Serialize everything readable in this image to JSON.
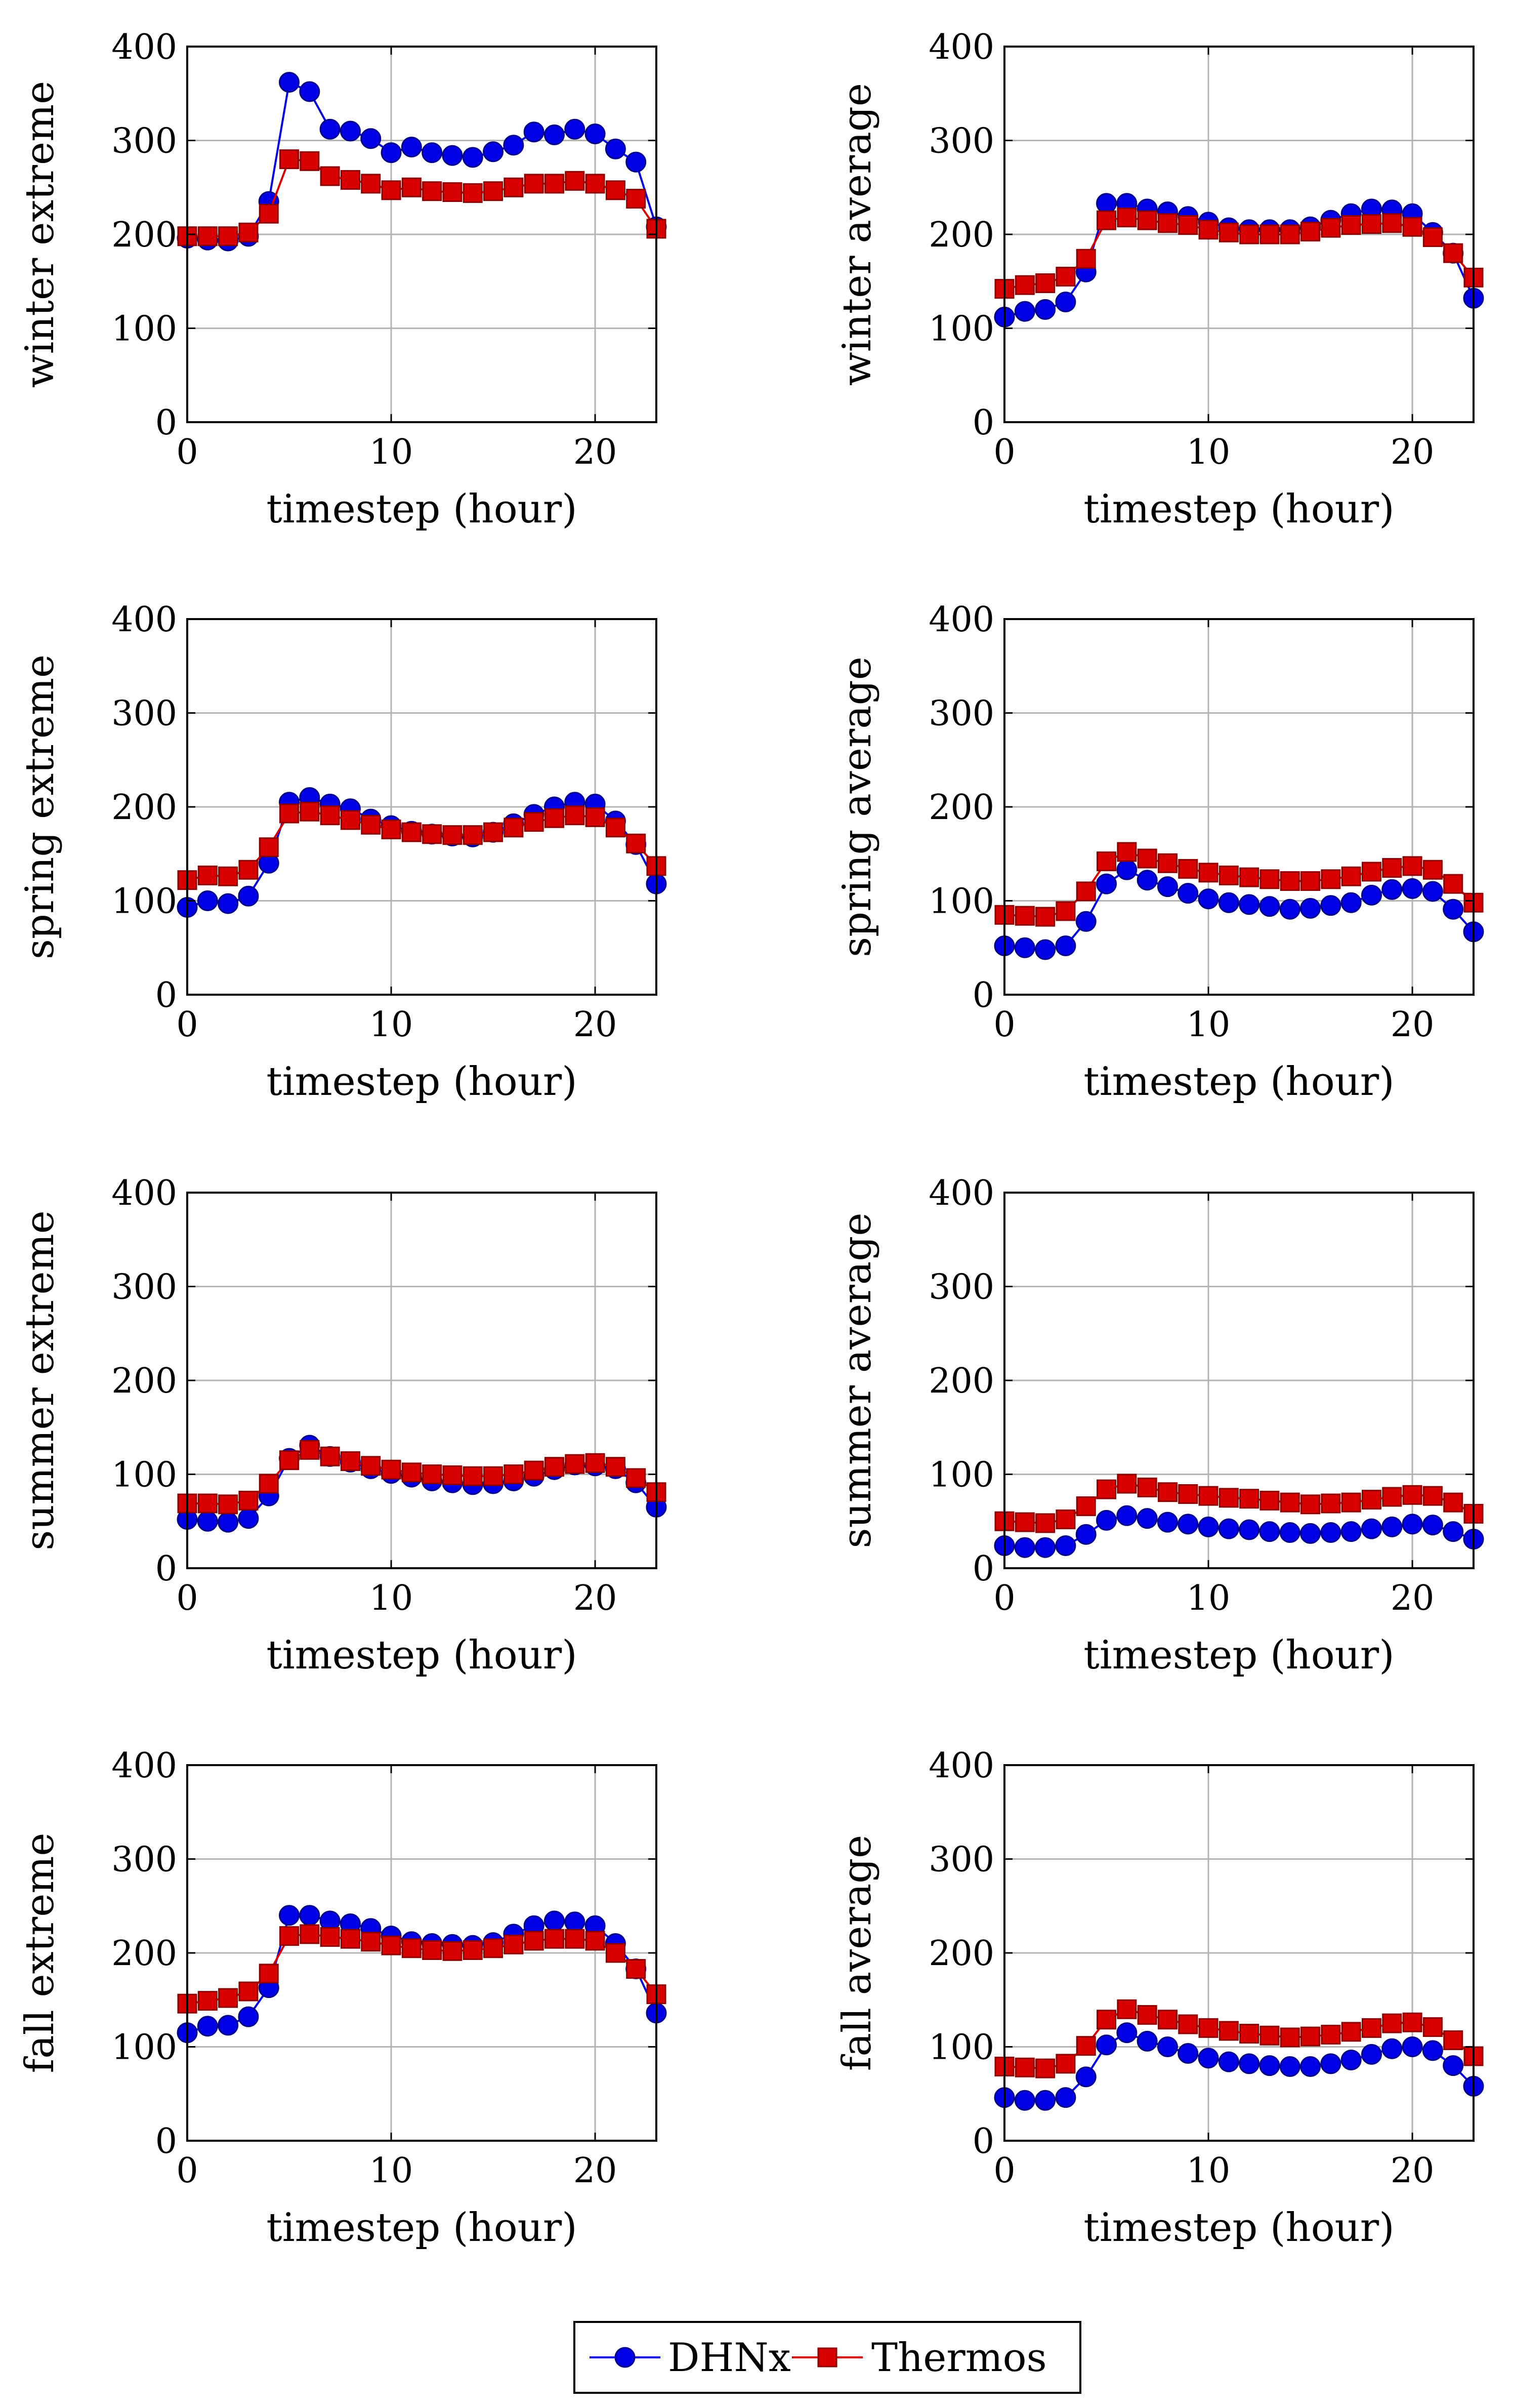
{
  "legend": {
    "entries": [
      {
        "name": "DHNx",
        "color": "#0000e6",
        "marker": "circle"
      },
      {
        "name": "Thermos",
        "color": "#d90000",
        "marker": "square"
      }
    ]
  },
  "colors": {
    "dhnx": "#0000e6",
    "thermos": "#d90000",
    "grid": "#b3b3b3",
    "axis": "#000000"
  },
  "chart_data": [
    {
      "type": "line",
      "ylabel": "winter extreme",
      "xlabel": "timestep (hour)",
      "xlim": [
        0,
        23
      ],
      "ylim": [
        0,
        400
      ],
      "xticks": [
        0,
        10,
        20
      ],
      "yticks": [
        0,
        100,
        200,
        300,
        400
      ],
      "grid": true,
      "x": [
        0,
        1,
        2,
        3,
        4,
        5,
        6,
        7,
        8,
        9,
        10,
        11,
        12,
        13,
        14,
        15,
        16,
        17,
        18,
        19,
        20,
        21,
        22,
        23
      ],
      "series": [
        {
          "name": "DHNx",
          "values": [
            196,
            194,
            193,
            198,
            235,
            362,
            352,
            312,
            310,
            302,
            287,
            293,
            287,
            284,
            282,
            288,
            295,
            309,
            306,
            312,
            307,
            291,
            277,
            208
          ]
        },
        {
          "name": "Thermos",
          "values": [
            198,
            198,
            198,
            202,
            222,
            280,
            278,
            262,
            258,
            254,
            247,
            250,
            246,
            245,
            244,
            246,
            250,
            254,
            254,
            257,
            254,
            247,
            238,
            206
          ]
        }
      ]
    },
    {
      "type": "line",
      "ylabel": "winter average",
      "xlabel": "timestep (hour)",
      "xlim": [
        0,
        23
      ],
      "ylim": [
        0,
        400
      ],
      "xticks": [
        0,
        10,
        20
      ],
      "yticks": [
        0,
        100,
        200,
        300,
        400
      ],
      "grid": true,
      "x": [
        0,
        1,
        2,
        3,
        4,
        5,
        6,
        7,
        8,
        9,
        10,
        11,
        12,
        13,
        14,
        15,
        16,
        17,
        18,
        19,
        20,
        21,
        22,
        23
      ],
      "series": [
        {
          "name": "DHNx",
          "values": [
            112,
            118,
            120,
            128,
            160,
            233,
            233,
            227,
            224,
            219,
            213,
            207,
            205,
            205,
            205,
            208,
            215,
            222,
            227,
            226,
            222,
            202,
            180,
            132
          ]
        },
        {
          "name": "Thermos",
          "values": [
            142,
            146,
            148,
            155,
            174,
            215,
            218,
            215,
            212,
            210,
            205,
            202,
            200,
            200,
            200,
            203,
            207,
            210,
            211,
            212,
            208,
            197,
            180,
            154
          ]
        }
      ]
    },
    {
      "type": "line",
      "ylabel": "spring extreme",
      "xlabel": "timestep (hour)",
      "xlim": [
        0,
        23
      ],
      "ylim": [
        0,
        400
      ],
      "xticks": [
        0,
        10,
        20
      ],
      "yticks": [
        0,
        100,
        200,
        300,
        400
      ],
      "grid": true,
      "x": [
        0,
        1,
        2,
        3,
        4,
        5,
        6,
        7,
        8,
        9,
        10,
        11,
        12,
        13,
        14,
        15,
        16,
        17,
        18,
        19,
        20,
        21,
        22,
        23
      ],
      "series": [
        {
          "name": "DHNx",
          "values": [
            93,
            100,
            97,
            105,
            140,
            205,
            210,
            203,
            198,
            187,
            180,
            174,
            171,
            169,
            168,
            173,
            182,
            192,
            200,
            205,
            203,
            185,
            160,
            118
          ]
        },
        {
          "name": "Thermos",
          "values": [
            122,
            127,
            126,
            133,
            157,
            193,
            195,
            191,
            186,
            181,
            176,
            173,
            171,
            170,
            170,
            173,
            178,
            184,
            188,
            191,
            189,
            178,
            161,
            137
          ]
        }
      ]
    },
    {
      "type": "line",
      "ylabel": "spring average",
      "xlabel": "timestep (hour)",
      "xlim": [
        0,
        23
      ],
      "ylim": [
        0,
        400
      ],
      "xticks": [
        0,
        10,
        20
      ],
      "yticks": [
        0,
        100,
        200,
        300,
        400
      ],
      "grid": true,
      "x": [
        0,
        1,
        2,
        3,
        4,
        5,
        6,
        7,
        8,
        9,
        10,
        11,
        12,
        13,
        14,
        15,
        16,
        17,
        18,
        19,
        20,
        21,
        22,
        23
      ],
      "series": [
        {
          "name": "DHNx",
          "values": [
            52,
            50,
            48,
            52,
            78,
            118,
            133,
            122,
            115,
            108,
            102,
            98,
            96,
            94,
            91,
            92,
            95,
            98,
            106,
            112,
            113,
            110,
            91,
            67
          ]
        },
        {
          "name": "Thermos",
          "values": [
            85,
            84,
            83,
            89,
            110,
            142,
            152,
            145,
            140,
            134,
            130,
            127,
            125,
            123,
            121,
            121,
            123,
            126,
            131,
            135,
            137,
            133,
            118,
            98
          ]
        }
      ]
    },
    {
      "type": "line",
      "ylabel": "summer extreme",
      "xlabel": "timestep (hour)",
      "xlim": [
        0,
        23
      ],
      "ylim": [
        0,
        400
      ],
      "xticks": [
        0,
        10,
        20
      ],
      "yticks": [
        0,
        100,
        200,
        300,
        400
      ],
      "grid": true,
      "x": [
        0,
        1,
        2,
        3,
        4,
        5,
        6,
        7,
        8,
        9,
        10,
        11,
        12,
        13,
        14,
        15,
        16,
        17,
        18,
        19,
        20,
        21,
        22,
        23
      ],
      "series": [
        {
          "name": "DHNx",
          "values": [
            52,
            50,
            49,
            53,
            77,
            117,
            131,
            119,
            113,
            106,
            101,
            97,
            93,
            91,
            89,
            90,
            93,
            98,
            105,
            110,
            109,
            106,
            91,
            65
          ]
        },
        {
          "name": "Thermos",
          "values": [
            69,
            69,
            68,
            72,
            90,
            115,
            126,
            119,
            114,
            109,
            105,
            102,
            100,
            99,
            98,
            98,
            100,
            104,
            108,
            111,
            112,
            108,
            96,
            81
          ]
        }
      ]
    },
    {
      "type": "line",
      "ylabel": "summer average",
      "xlabel": "timestep (hour)",
      "xlim": [
        0,
        23
      ],
      "ylim": [
        0,
        400
      ],
      "xticks": [
        0,
        10,
        20
      ],
      "yticks": [
        0,
        100,
        200,
        300,
        400
      ],
      "grid": true,
      "x": [
        0,
        1,
        2,
        3,
        4,
        5,
        6,
        7,
        8,
        9,
        10,
        11,
        12,
        13,
        14,
        15,
        16,
        17,
        18,
        19,
        20,
        21,
        22,
        23
      ],
      "series": [
        {
          "name": "DHNx",
          "values": [
            24,
            22,
            22,
            24,
            36,
            51,
            56,
            53,
            49,
            47,
            44,
            42,
            41,
            39,
            38,
            37,
            38,
            39,
            42,
            44,
            47,
            46,
            39,
            31
          ]
        },
        {
          "name": "Thermos",
          "values": [
            50,
            49,
            48,
            52,
            66,
            84,
            90,
            86,
            81,
            79,
            77,
            75,
            74,
            72,
            70,
            68,
            69,
            70,
            73,
            76,
            78,
            77,
            70,
            58
          ]
        }
      ]
    },
    {
      "type": "line",
      "ylabel": "fall extreme",
      "xlabel": "timestep (hour)",
      "xlim": [
        0,
        23
      ],
      "ylim": [
        0,
        400
      ],
      "xticks": [
        0,
        10,
        20
      ],
      "yticks": [
        0,
        100,
        200,
        300,
        400
      ],
      "grid": true,
      "x": [
        0,
        1,
        2,
        3,
        4,
        5,
        6,
        7,
        8,
        9,
        10,
        11,
        12,
        13,
        14,
        15,
        16,
        17,
        18,
        19,
        20,
        21,
        22,
        23
      ],
      "series": [
        {
          "name": "DHNx",
          "values": [
            115,
            122,
            123,
            132,
            163,
            240,
            240,
            234,
            231,
            226,
            218,
            212,
            210,
            209,
            208,
            211,
            220,
            229,
            234,
            233,
            229,
            210,
            183,
            136
          ]
        },
        {
          "name": "Thermos",
          "values": [
            146,
            149,
            152,
            159,
            178,
            218,
            220,
            217,
            215,
            212,
            208,
            205,
            203,
            202,
            203,
            205,
            209,
            213,
            215,
            215,
            213,
            200,
            183,
            156
          ]
        }
      ]
    },
    {
      "type": "line",
      "ylabel": "fall average",
      "xlabel": "timestep (hour)",
      "xlim": [
        0,
        23
      ],
      "ylim": [
        0,
        400
      ],
      "xticks": [
        0,
        10,
        20
      ],
      "yticks": [
        0,
        100,
        200,
        300,
        400
      ],
      "grid": true,
      "x": [
        0,
        1,
        2,
        3,
        4,
        5,
        6,
        7,
        8,
        9,
        10,
        11,
        12,
        13,
        14,
        15,
        16,
        17,
        18,
        19,
        20,
        21,
        22,
        23
      ],
      "series": [
        {
          "name": "DHNx",
          "values": [
            46,
            43,
            43,
            46,
            68,
            102,
            115,
            106,
            100,
            93,
            88,
            84,
            82,
            80,
            79,
            79,
            82,
            86,
            92,
            98,
            100,
            96,
            80,
            58
          ]
        },
        {
          "name": "Thermos",
          "values": [
            79,
            78,
            77,
            82,
            101,
            129,
            140,
            134,
            129,
            124,
            120,
            117,
            114,
            112,
            110,
            111,
            113,
            116,
            120,
            125,
            126,
            121,
            107,
            90
          ]
        }
      ]
    }
  ]
}
